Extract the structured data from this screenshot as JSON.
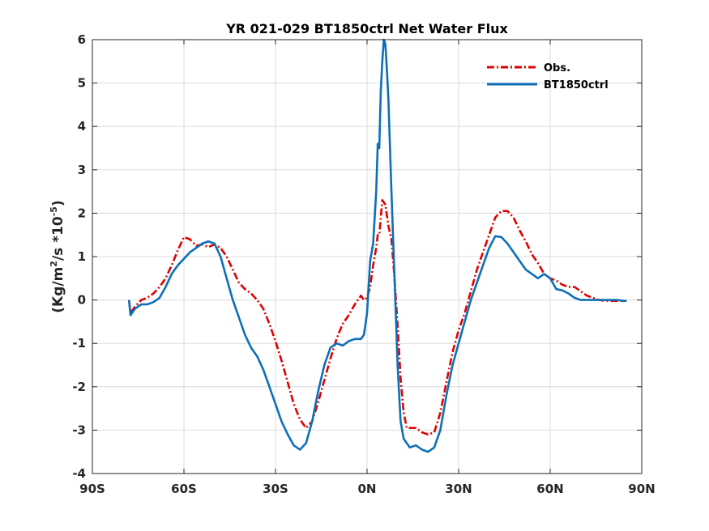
{
  "chart_data": {
    "type": "line",
    "title": "YR 021-029 BT1850ctrl  Net Water Flux",
    "xlabel": "",
    "ylabel_parts": [
      "(Kg/m",
      "2",
      "/s *10",
      "-5",
      ")"
    ],
    "xlim": [
      -90,
      90
    ],
    "ylim": [
      -4,
      6
    ],
    "xticks": [
      -90,
      -60,
      -30,
      0,
      30,
      60,
      90
    ],
    "xtick_labels": [
      "90S",
      "60S",
      "30S",
      "0N",
      "30N",
      "60N",
      "90N"
    ],
    "yticks": [
      -4,
      -3,
      -2,
      -1,
      0,
      1,
      2,
      3,
      4,
      5,
      6
    ],
    "ytick_labels": [
      "-4",
      "-3",
      "-2",
      "-1",
      "0",
      "1",
      "2",
      "3",
      "4",
      "5",
      "6"
    ],
    "grid": true,
    "legend_position": "top-right",
    "series": [
      {
        "name": "Obs.",
        "color": "#e00000",
        "style": "dash-dot",
        "x": [
          -78,
          -77.5,
          -76,
          -74,
          -72,
          -70,
          -68,
          -66,
          -64,
          -62,
          -60,
          -58,
          -56,
          -54,
          -52,
          -50,
          -48,
          -46,
          -44,
          -42,
          -40,
          -38,
          -36,
          -34,
          -32,
          -30,
          -28,
          -26,
          -24,
          -22,
          -20,
          -18,
          -16,
          -14,
          -12,
          -10,
          -8,
          -6,
          -4,
          -2,
          -1,
          0,
          1,
          2,
          3,
          3.5,
          4,
          5,
          6,
          7,
          8,
          9,
          10,
          11,
          12,
          13,
          14,
          16,
          18,
          20,
          22,
          24,
          26,
          28,
          30,
          32,
          34,
          36,
          38,
          40,
          42,
          44,
          46,
          48,
          50,
          52,
          54,
          56,
          58,
          60,
          62,
          64,
          66,
          68,
          70,
          72,
          74,
          76,
          78,
          80,
          82,
          84,
          85
        ],
        "y": [
          0,
          -0.3,
          -0.15,
          0,
          0.05,
          0.15,
          0.3,
          0.5,
          0.8,
          1.15,
          1.45,
          1.4,
          1.25,
          1.28,
          1.22,
          1.28,
          1.2,
          1.0,
          0.7,
          0.4,
          0.25,
          0.15,
          0.0,
          -0.2,
          -0.55,
          -0.95,
          -1.4,
          -1.9,
          -2.4,
          -2.75,
          -2.95,
          -2.8,
          -2.35,
          -1.85,
          -1.35,
          -0.9,
          -0.55,
          -0.35,
          -0.1,
          0.1,
          0.0,
          0.05,
          0.3,
          0.8,
          1.2,
          1.5,
          1.5,
          2.3,
          2.2,
          1.7,
          1.4,
          0.5,
          -0.6,
          -1.8,
          -2.6,
          -2.95,
          -2.95,
          -2.95,
          -3.05,
          -3.1,
          -3.05,
          -2.6,
          -1.9,
          -1.2,
          -0.7,
          -0.3,
          0.2,
          0.7,
          1.1,
          1.5,
          1.9,
          2.05,
          2.05,
          1.9,
          1.6,
          1.35,
          1.05,
          0.85,
          0.6,
          0.5,
          0.45,
          0.35,
          0.3,
          0.3,
          0.2,
          0.1,
          0.05,
          0.0,
          -0.02,
          -0.02,
          -0.02,
          -0.02,
          -0.02
        ]
      },
      {
        "name": "BT1850ctrl",
        "color": "#0d6fb8",
        "style": "solid",
        "x": [
          -78,
          -77.5,
          -76,
          -74,
          -72,
          -70,
          -68,
          -66,
          -64,
          -62,
          -60,
          -58,
          -56,
          -54,
          -52,
          -50,
          -48,
          -46,
          -44,
          -42,
          -40,
          -38,
          -36,
          -34,
          -32,
          -30,
          -28,
          -26,
          -24,
          -22,
          -20,
          -18,
          -16,
          -14,
          -12,
          -10,
          -8,
          -6,
          -4,
          -2,
          -1,
          0,
          1,
          2,
          3,
          3.5,
          4,
          4.5,
          5,
          5.5,
          6,
          6.5,
          7,
          7.5,
          8,
          9,
          10,
          11,
          12,
          13,
          14,
          16,
          18,
          20,
          22,
          24,
          26,
          28,
          30,
          32,
          34,
          36,
          38,
          40,
          42,
          44,
          46,
          48,
          50,
          52,
          54,
          56,
          58,
          60,
          62,
          64,
          66,
          68,
          70,
          72,
          74,
          76,
          78,
          80,
          82,
          84,
          85
        ],
        "y": [
          0,
          -0.35,
          -0.2,
          -0.1,
          -0.1,
          -0.05,
          0.05,
          0.3,
          0.6,
          0.8,
          0.95,
          1.1,
          1.2,
          1.3,
          1.35,
          1.3,
          1.0,
          0.5,
          0.0,
          -0.4,
          -0.8,
          -1.1,
          -1.3,
          -1.6,
          -2.0,
          -2.4,
          -2.8,
          -3.1,
          -3.35,
          -3.45,
          -3.3,
          -2.8,
          -2.1,
          -1.5,
          -1.1,
          -1.0,
          -1.05,
          -0.95,
          -0.9,
          -0.9,
          -0.8,
          -0.3,
          0.9,
          1.3,
          2.5,
          3.6,
          3.5,
          4.8,
          5.5,
          6.0,
          5.9,
          5.3,
          4.6,
          3.5,
          2.5,
          0.5,
          -1.5,
          -2.8,
          -3.2,
          -3.3,
          -3.4,
          -3.35,
          -3.45,
          -3.5,
          -3.4,
          -3.0,
          -2.2,
          -1.5,
          -1.0,
          -0.5,
          0.0,
          0.4,
          0.8,
          1.2,
          1.47,
          1.45,
          1.3,
          1.1,
          0.9,
          0.7,
          0.6,
          0.5,
          0.6,
          0.5,
          0.25,
          0.22,
          0.15,
          0.05,
          0.0,
          0.0,
          0.0,
          0.0,
          0.0,
          0.0,
          0.0,
          -0.02,
          -0.02
        ]
      }
    ]
  }
}
